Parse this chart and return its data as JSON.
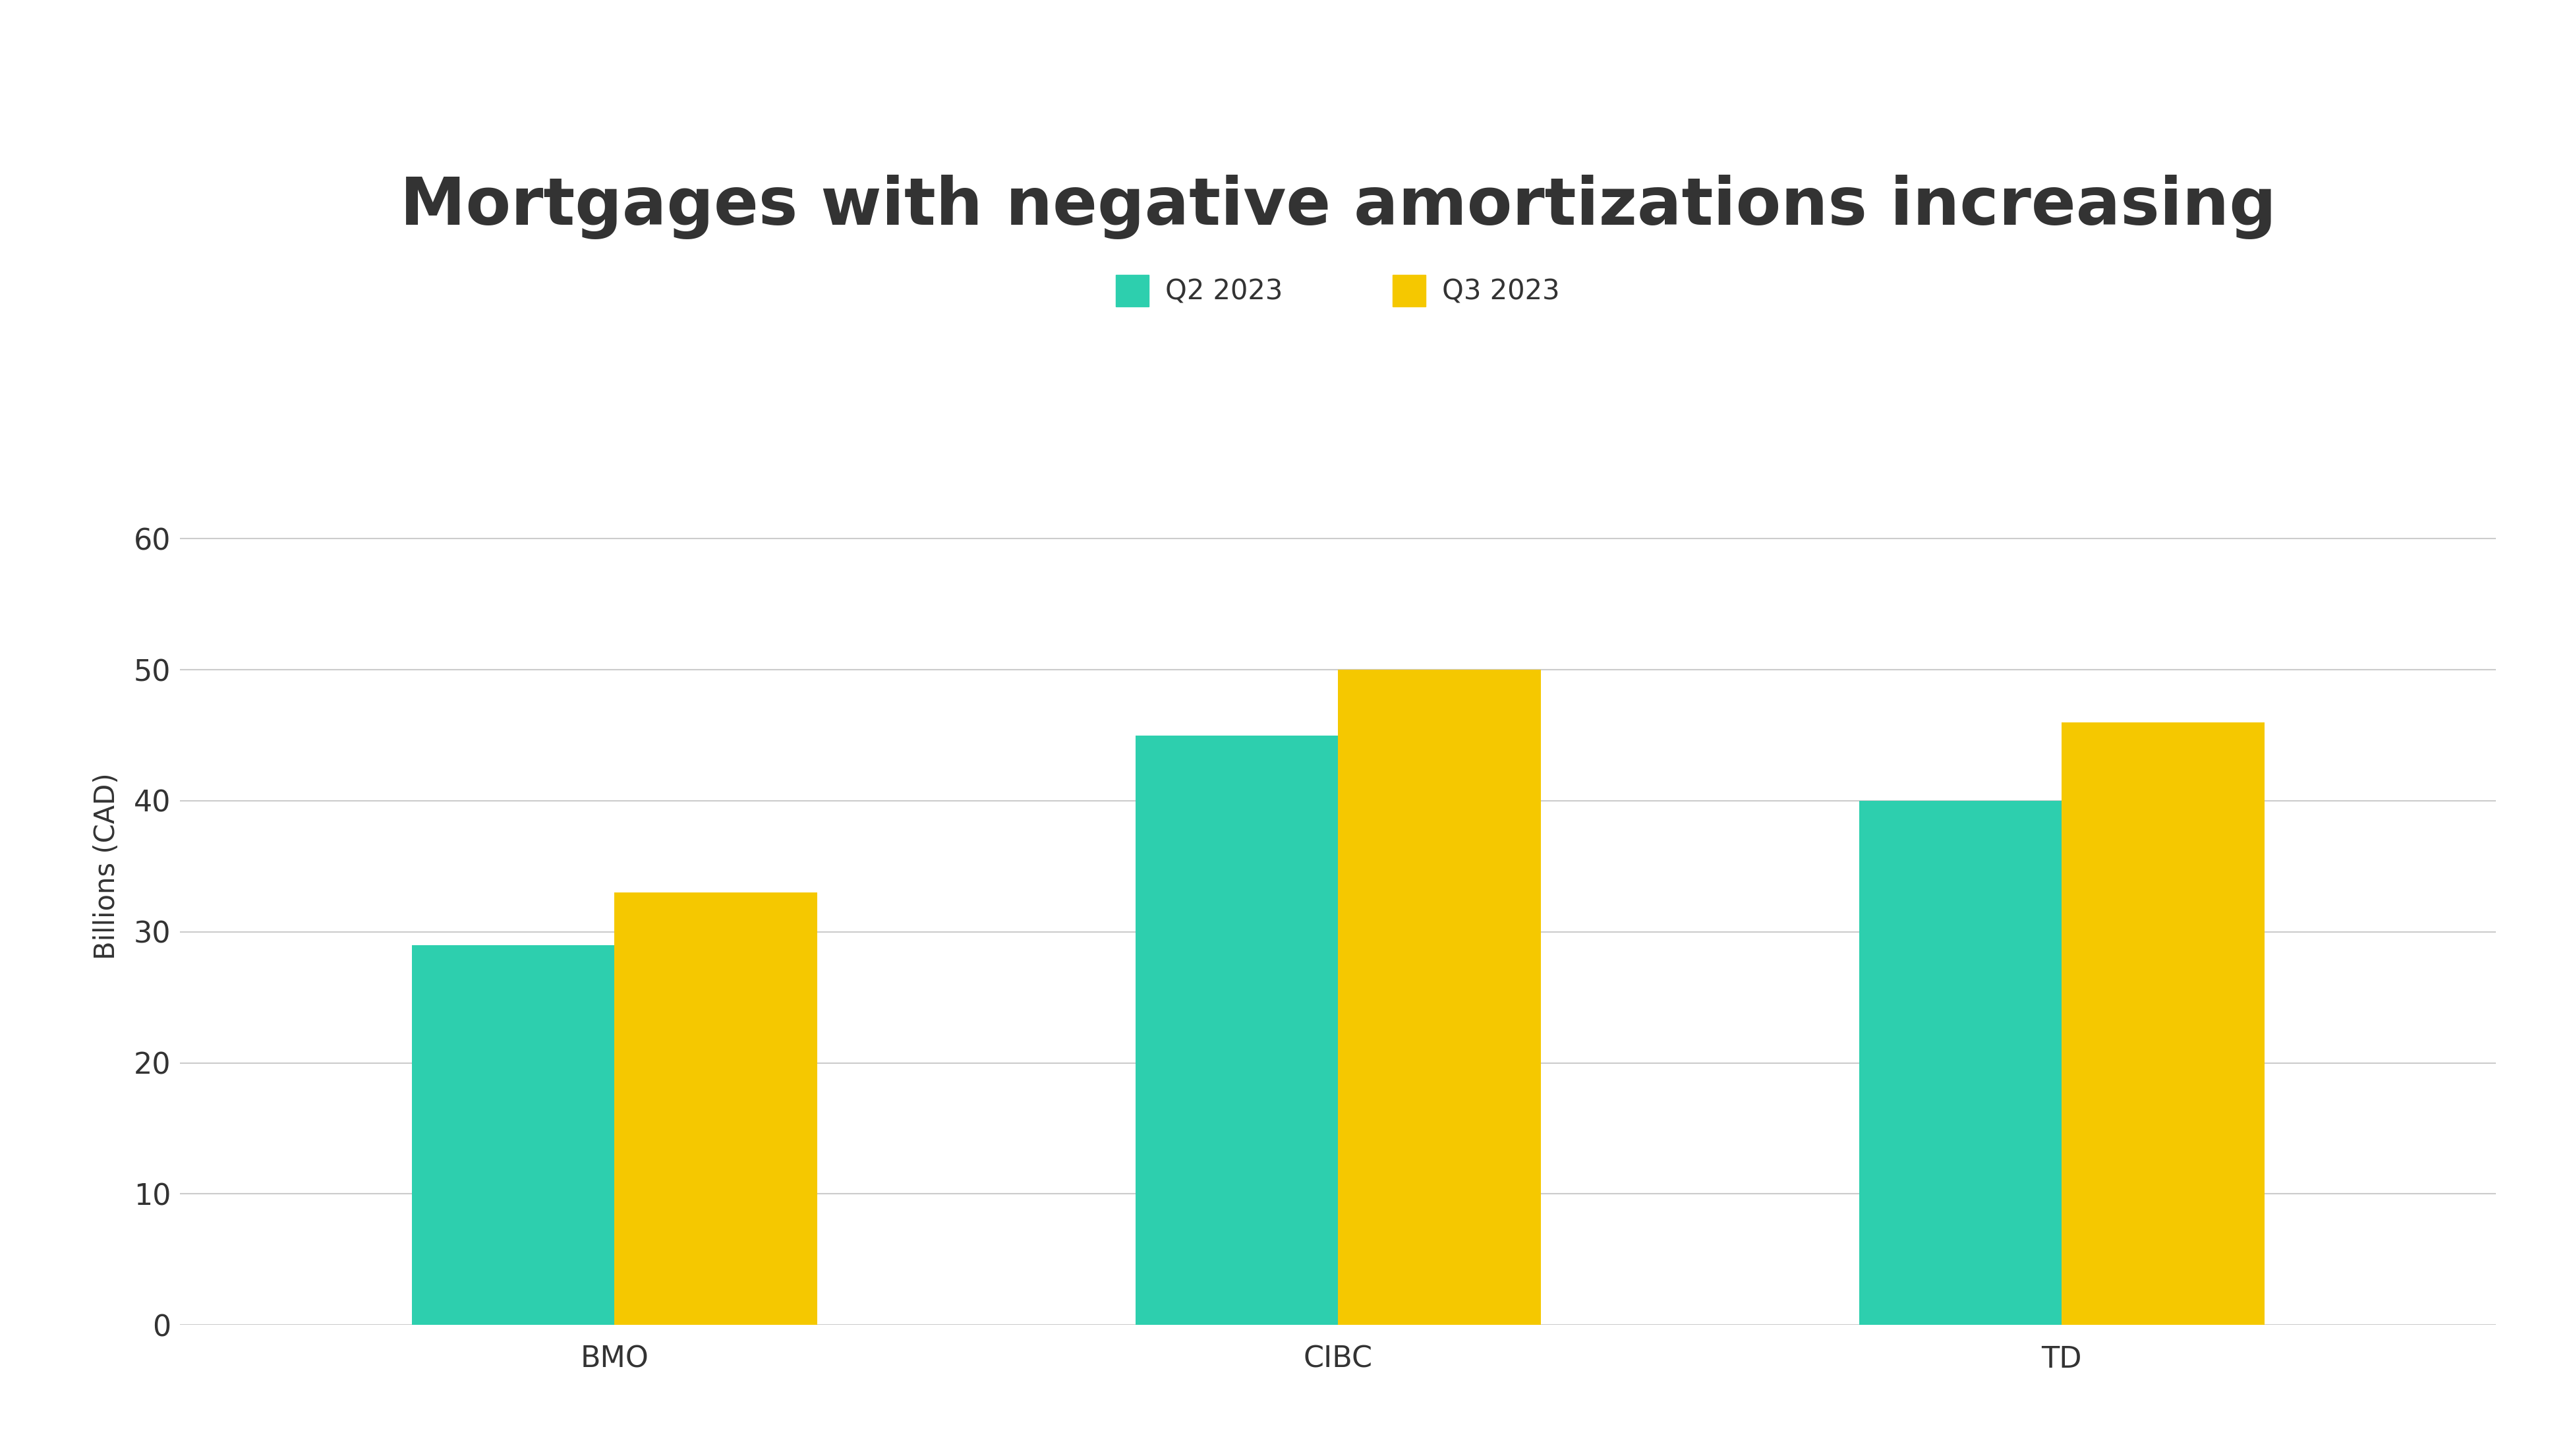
{
  "title": "Mortgages with negative amortizations increasing",
  "ylabel": "Billions (CAD)",
  "categories": [
    "BMO",
    "CIBC",
    "TD"
  ],
  "q2_values": [
    29,
    45,
    40
  ],
  "q3_values": [
    33,
    50,
    46
  ],
  "q2_color": "#2DCFAE",
  "q3_color": "#F5C800",
  "background_color": "#ffffff",
  "ylim": [
    0,
    70
  ],
  "yticks": [
    0,
    10,
    20,
    30,
    40,
    50,
    60
  ],
  "legend_labels": [
    "Q2 2023",
    "Q3 2023"
  ],
  "title_fontsize": 72,
  "axis_label_fontsize": 30,
  "tick_fontsize": 32,
  "legend_fontsize": 30,
  "bar_width": 0.28,
  "text_color": "#333333",
  "grid_color": "#cccccc"
}
